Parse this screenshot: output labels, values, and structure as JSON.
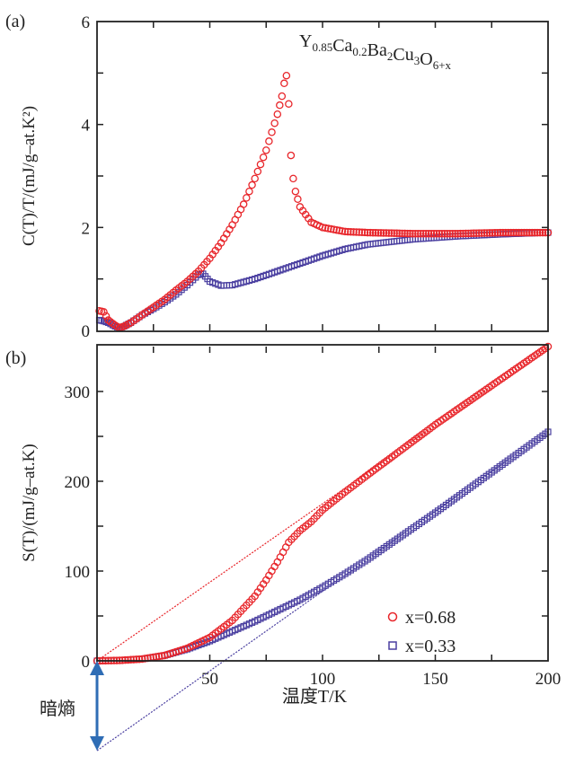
{
  "chart_data": [
    {
      "panel_label": "(a)",
      "type": "scatter",
      "ylabel": "C(T)/T/(mJ/g–at.K²)",
      "xlabel": "",
      "xlim": [
        0,
        200
      ],
      "ylim": [
        0,
        6
      ],
      "yticks": [
        "0",
        "2",
        "4",
        "6"
      ],
      "xticks_shown": false,
      "formula": [
        {
          "t": "Y",
          "sub": "0.85"
        },
        {
          "t": "Ca",
          "sub": "0.2"
        },
        {
          "t": "Ba",
          "sub": "2"
        },
        {
          "t": "Cu",
          "sub": "3"
        },
        {
          "t": "O",
          "sub": "6+x"
        }
      ],
      "series": [
        {
          "name": "x=0.68",
          "marker": "circle",
          "color": "#e8262b",
          "x": [
            1,
            3,
            5,
            8,
            10,
            12,
            15,
            20,
            25,
            30,
            35,
            40,
            45,
            50,
            55,
            60,
            65,
            70,
            75,
            80,
            82,
            83,
            84,
            85,
            86,
            87,
            88,
            90,
            95,
            100,
            110,
            120,
            140,
            160,
            180,
            200
          ],
          "y": [
            0.38,
            0.36,
            0.2,
            0.1,
            0.05,
            0.08,
            0.15,
            0.3,
            0.45,
            0.6,
            0.78,
            0.95,
            1.15,
            1.4,
            1.7,
            2.05,
            2.45,
            2.95,
            3.5,
            4.2,
            4.55,
            4.8,
            4.95,
            4.4,
            3.4,
            2.95,
            2.7,
            2.4,
            2.1,
            2.0,
            1.92,
            1.9,
            1.88,
            1.88,
            1.9,
            1.9
          ]
        },
        {
          "name": "x=0.33",
          "marker": "square",
          "color": "#4a3fa0",
          "x": [
            1,
            3,
            5,
            8,
            10,
            12,
            15,
            20,
            25,
            30,
            35,
            40,
            45,
            47,
            50,
            55,
            60,
            70,
            80,
            90,
            100,
            110,
            120,
            140,
            160,
            180,
            200
          ],
          "y": [
            0.2,
            0.18,
            0.15,
            0.08,
            0.05,
            0.08,
            0.15,
            0.3,
            0.42,
            0.55,
            0.7,
            0.88,
            1.08,
            1.1,
            0.95,
            0.87,
            0.88,
            1.0,
            1.15,
            1.3,
            1.45,
            1.58,
            1.67,
            1.77,
            1.83,
            1.87,
            1.9
          ]
        }
      ]
    },
    {
      "panel_label": "(b)",
      "type": "scatter",
      "ylabel": "S(T)/(mJ/g–at.K)",
      "xlabel": "温度T/K",
      "xlim": [
        0,
        200
      ],
      "ylim": [
        0,
        350
      ],
      "xticks": [
        "50",
        "100",
        "150",
        "200"
      ],
      "yticks": [
        "0",
        "100",
        "200",
        "300"
      ],
      "annotation": "暗熵",
      "annotation_color": "#2f6db5",
      "legend_position": "bottom-right",
      "series": [
        {
          "name": "x=0.68",
          "marker": "circle",
          "color": "#e8262b",
          "x": [
            0,
            10,
            20,
            30,
            40,
            50,
            60,
            70,
            75,
            80,
            85,
            90,
            95,
            100,
            110,
            120,
            150,
            200
          ],
          "y": [
            0,
            0.5,
            2,
            6,
            14,
            26,
            45,
            72,
            90,
            110,
            132,
            145,
            155,
            168,
            188,
            207,
            263,
            350
          ]
        },
        {
          "name": "x=0.33",
          "marker": "square",
          "color": "#4a3fa0",
          "x": [
            0,
            10,
            20,
            30,
            40,
            50,
            60,
            70,
            80,
            90,
            100,
            110,
            120,
            150,
            200
          ],
          "y": [
            0,
            0.5,
            2,
            6,
            13,
            22,
            33,
            44,
            56,
            68,
            82,
            97,
            113,
            165,
            255
          ]
        }
      ],
      "reference_lines": [
        {
          "series": "x=0.68",
          "color": "#e8262b",
          "x": [
            0,
            200
          ],
          "y": [
            0,
            350
          ]
        },
        {
          "series": "x=0.33",
          "color": "#4a3fa0",
          "x": [
            0,
            200
          ],
          "y": [
            -100,
            255
          ]
        }
      ]
    }
  ]
}
